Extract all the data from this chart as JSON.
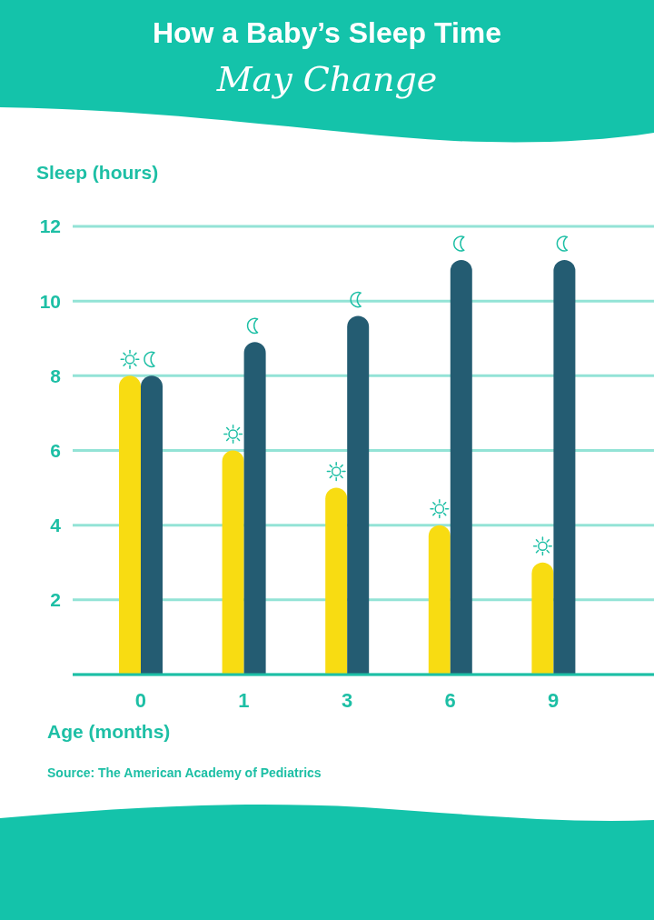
{
  "chart_data": {
    "type": "bar",
    "title": "How a Baby’s Sleep Time",
    "subtitle": "May Change",
    "xlabel": "Age (months)",
    "ylabel": "Sleep (hours)",
    "annotations": [
      "Source: The American Academy of Pediatrics"
    ],
    "categories": [
      "0",
      "1",
      "3",
      "6",
      "9"
    ],
    "series": [
      {
        "color": "#f8dc12",
        "values": [
          8,
          6,
          5,
          4,
          3
        ]
      },
      {
        "color": "#245c72",
        "values": [
          8,
          8.9,
          9.6,
          11.1,
          11.1
        ]
      }
    ],
    "ylim": [
      0,
      12
    ],
    "yticks": [
      2,
      4,
      6,
      8,
      10,
      12
    ],
    "grid": "y"
  }
}
